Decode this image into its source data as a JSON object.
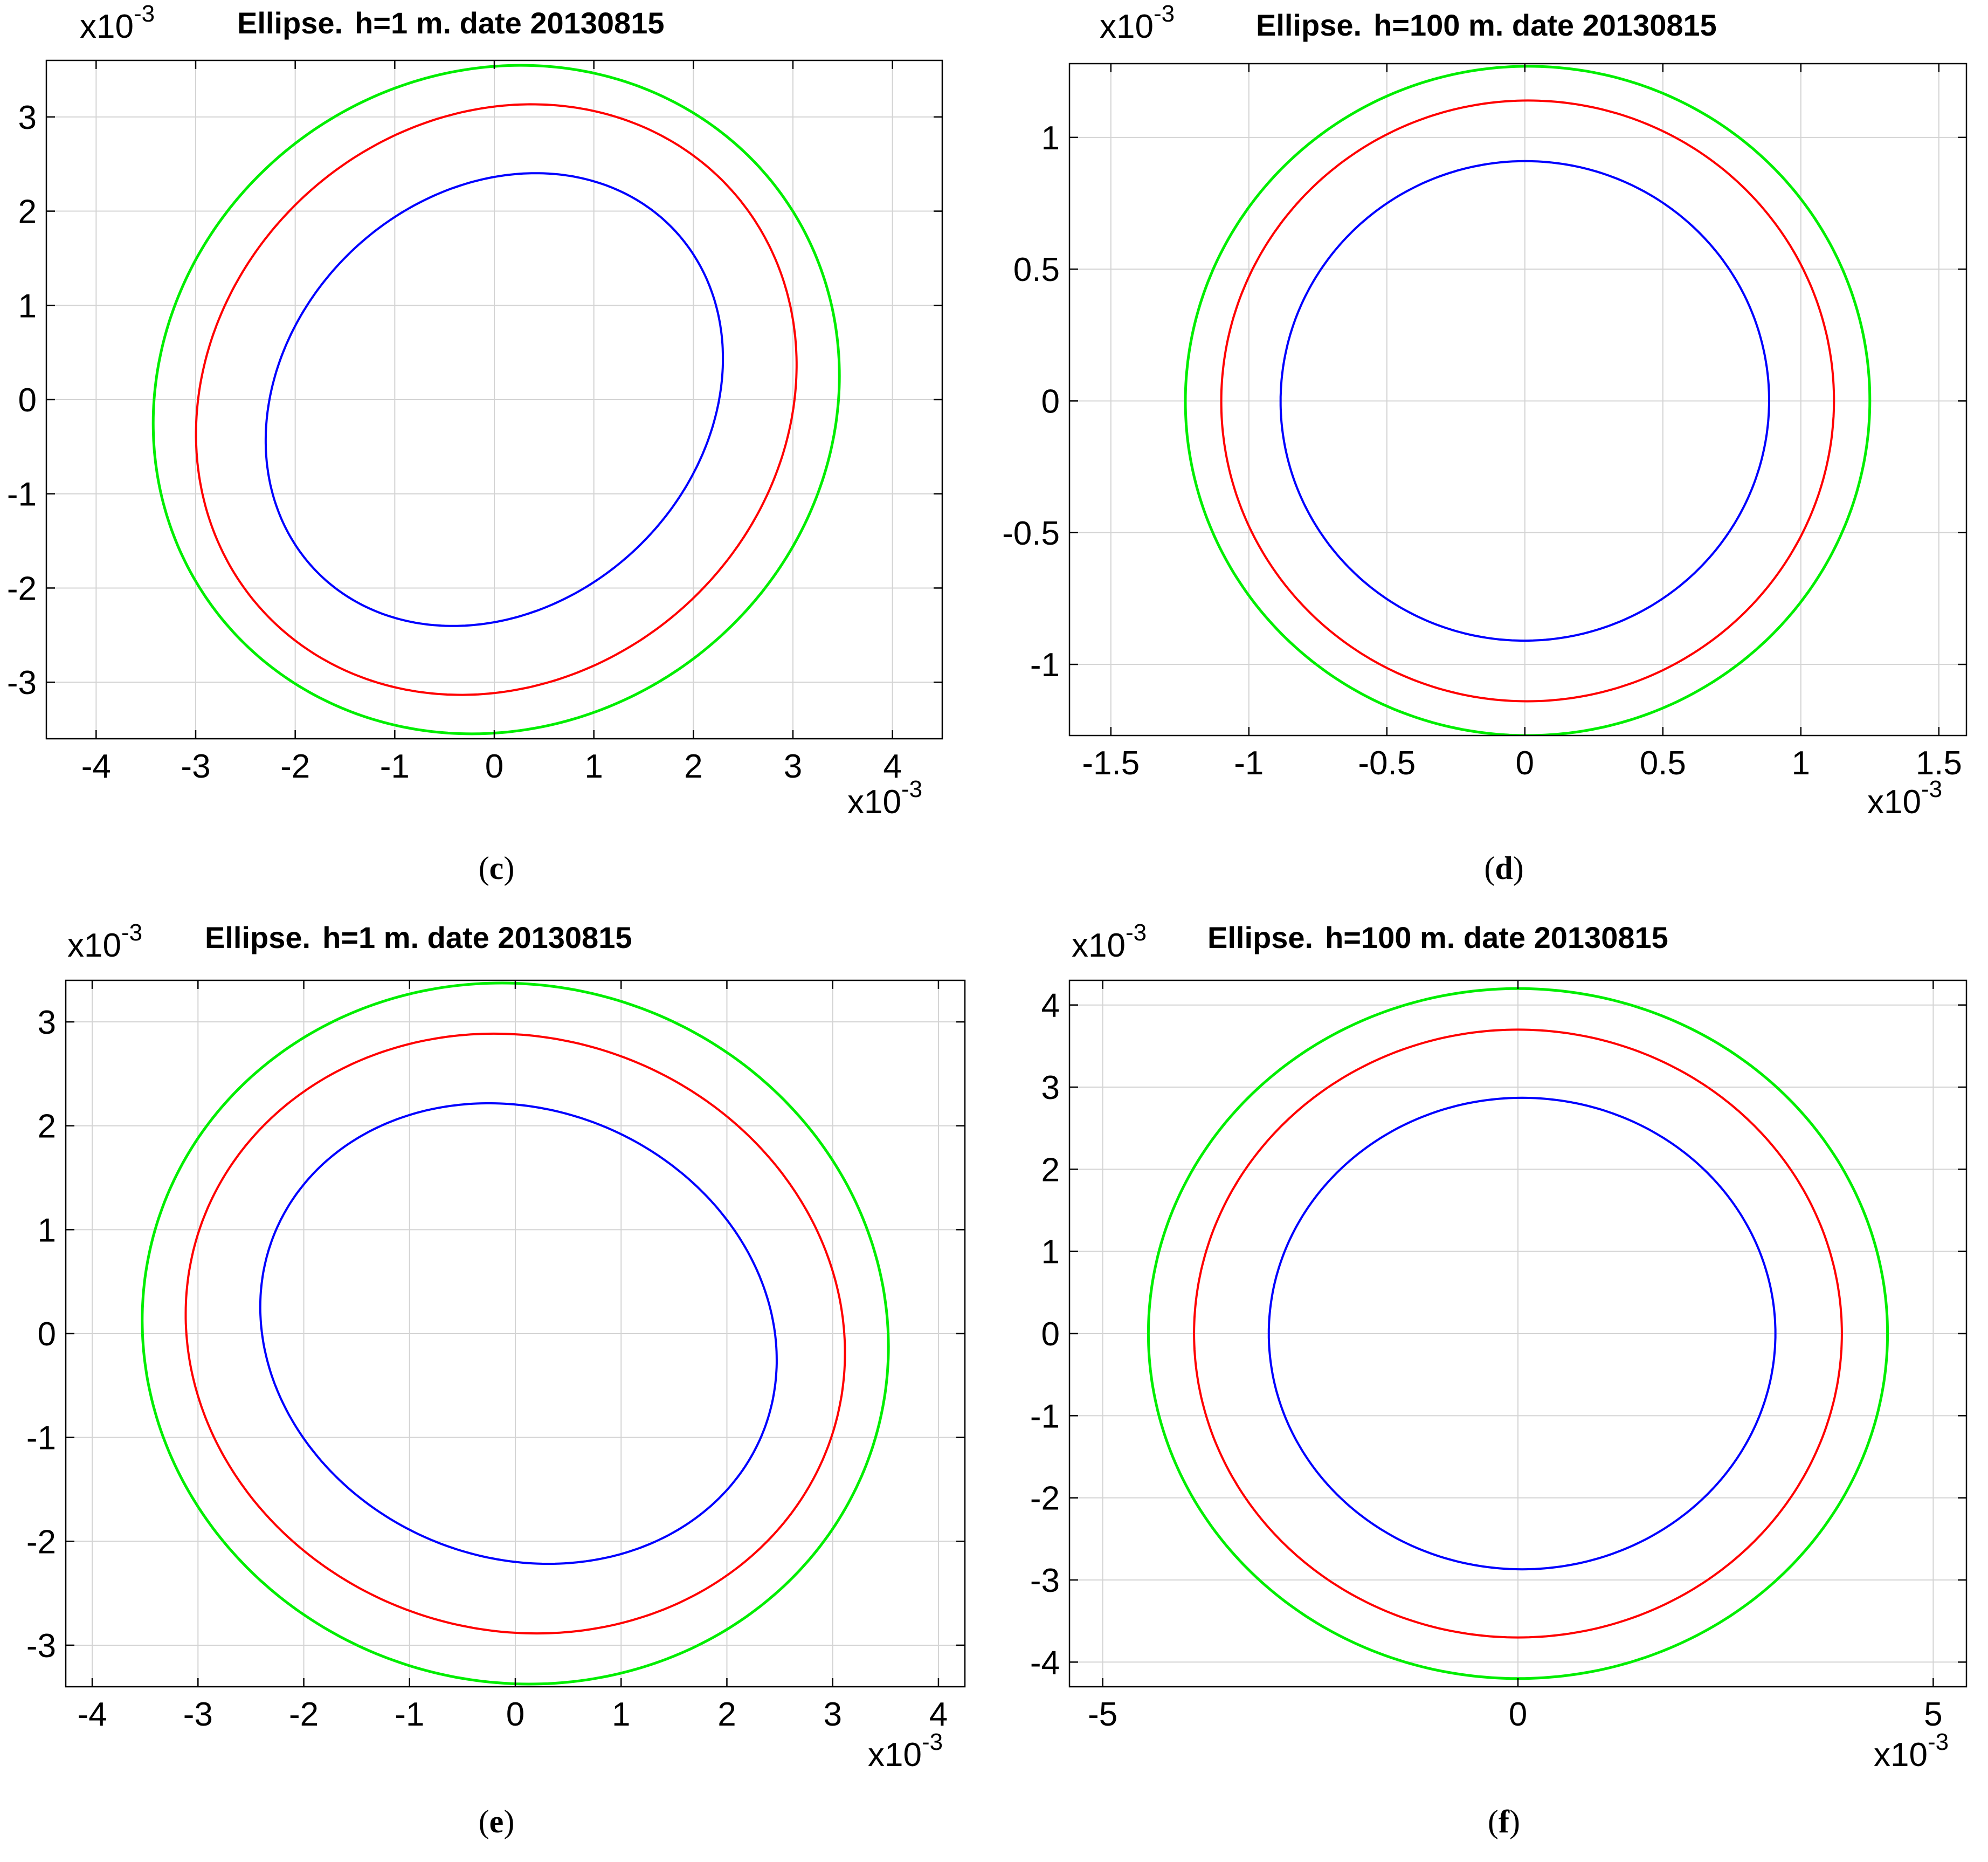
{
  "figure": {
    "colors": {
      "outer": "#00ee00",
      "middle": "#ff0000",
      "inner": "#0000ff",
      "grid": "#d4d4d4",
      "axis": "#000000"
    }
  },
  "chart_data": [
    {
      "id": "c",
      "type": "line",
      "panel_label": "c",
      "title_bold": "Ellipse.",
      "title_rest": "h=1 m. date 20130815",
      "exponent_base": "x10",
      "exponent_power": "-3",
      "xlim": [
        -4.5,
        4.5
      ],
      "ylim": [
        -3.6,
        3.6
      ],
      "xticks": [
        -4,
        -3,
        -2,
        -1,
        0,
        1,
        2,
        3,
        4
      ],
      "xtick_labels": [
        "-4",
        "-3",
        "-2",
        "-1",
        "0",
        "1",
        "2",
        "3",
        "4"
      ],
      "yticks": [
        3,
        2,
        1,
        0,
        -1,
        -2,
        -3
      ],
      "ytick_labels": [
        "3",
        "2",
        "1",
        "0",
        "-1",
        "-2",
        "-3"
      ],
      "grid": true,
      "series": [
        {
          "name": "outer",
          "color": "#00ee00",
          "center": [
            0.02,
            0.0
          ],
          "semi_major": 3.63,
          "semi_minor": 3.36,
          "rotation_deg": 56
        },
        {
          "name": "middle",
          "color": "#ff0000",
          "center": [
            0.02,
            0.0
          ],
          "semi_major": 3.26,
          "semi_minor": 2.88,
          "rotation_deg": 54
        },
        {
          "name": "inner",
          "color": "#0000ff",
          "center": [
            0.0,
            0.0
          ],
          "semi_major": 2.56,
          "semi_minor": 2.12,
          "rotation_deg": 52
        }
      ]
    },
    {
      "id": "d",
      "type": "line",
      "panel_label": "d",
      "title_bold": "Ellipse.",
      "title_rest": "h=100 m. date 20130815",
      "exponent_base": "x10",
      "exponent_power": "-3",
      "xlim": [
        -1.65,
        1.6
      ],
      "ylim": [
        -1.27,
        1.28
      ],
      "xticks": [
        -1.5,
        -1,
        -0.5,
        0,
        0.5,
        1,
        1.5
      ],
      "xtick_labels": [
        "-1.5",
        "-1",
        "-0.5",
        "0",
        "0.5",
        "1",
        "1.5"
      ],
      "yticks": [
        1,
        0.5,
        0,
        -0.5,
        -1
      ],
      "ytick_labels": [
        "1",
        "0.5",
        "0",
        "-0.5",
        "-1"
      ],
      "grid": true,
      "series": [
        {
          "name": "outer",
          "color": "#00ee00",
          "center": [
            0.01,
            0.0
          ],
          "semi_major": 1.27,
          "semi_minor": 1.24,
          "rotation_deg": 88
        },
        {
          "name": "middle",
          "color": "#ff0000",
          "center": [
            0.01,
            0.0
          ],
          "semi_major": 1.14,
          "semi_minor": 1.11,
          "rotation_deg": 88
        },
        {
          "name": "inner",
          "color": "#0000ff",
          "center": [
            0.0,
            0.0
          ],
          "semi_major": 0.91,
          "semi_minor": 0.885,
          "rotation_deg": 88
        }
      ]
    },
    {
      "id": "e",
      "type": "line",
      "panel_label": "e",
      "title_bold": "Ellipse.",
      "title_rest": "h=1 m. date 20130815",
      "exponent_base": "x10",
      "exponent_power": "-3",
      "xlim": [
        -4.25,
        4.25
      ],
      "ylim": [
        -3.4,
        3.4
      ],
      "xticks": [
        -4,
        -3,
        -2,
        -1,
        0,
        1,
        2,
        3,
        4
      ],
      "xtick_labels": [
        "-4",
        "-3",
        "-2",
        "-1",
        "0",
        "1",
        "2",
        "3",
        "4"
      ],
      "yticks": [
        3,
        2,
        1,
        0,
        -1,
        -2,
        -3
      ],
      "ytick_labels": [
        "3",
        "2",
        "1",
        "0",
        "-1",
        "-2",
        "-3"
      ],
      "grid": true,
      "series": [
        {
          "name": "outer",
          "color": "#00ee00",
          "center": [
            0.0,
            0.0
          ],
          "semi_major": 3.55,
          "semi_minor": 3.35,
          "rotation_deg": -20
        },
        {
          "name": "middle",
          "color": "#ff0000",
          "center": [
            0.0,
            0.0
          ],
          "semi_major": 3.15,
          "semi_minor": 2.85,
          "rotation_deg": -20
        },
        {
          "name": "inner",
          "color": "#0000ff",
          "center": [
            0.03,
            0.0
          ],
          "semi_major": 2.5,
          "semi_minor": 2.15,
          "rotation_deg": -25
        }
      ]
    },
    {
      "id": "f",
      "type": "line",
      "panel_label": "f",
      "title_bold": "Ellipse.",
      "title_rest": "h=100 m. date 20130815",
      "exponent_base": "x10",
      "exponent_power": "-3",
      "xlim": [
        -5.4,
        5.4
      ],
      "ylim": [
        -4.3,
        4.3
      ],
      "xticks": [
        -5,
        0,
        5
      ],
      "xtick_labels": [
        "-5",
        "0",
        "5"
      ],
      "yticks": [
        4,
        3,
        2,
        1,
        0,
        -1,
        -2,
        -3,
        -4
      ],
      "ytick_labels": [
        "4",
        "3",
        "2",
        "1",
        "0",
        "-1",
        "-2",
        "-3",
        "-4"
      ],
      "grid": true,
      "series": [
        {
          "name": "outer",
          "color": "#00ee00",
          "center": [
            0.0,
            0.0
          ],
          "semi_major": 4.45,
          "semi_minor": 4.2,
          "rotation_deg": 0
        },
        {
          "name": "middle",
          "color": "#ff0000",
          "center": [
            0.0,
            0.0
          ],
          "semi_major": 3.9,
          "semi_minor": 3.7,
          "rotation_deg": 0
        },
        {
          "name": "inner",
          "color": "#0000ff",
          "center": [
            0.05,
            0.0
          ],
          "semi_major": 3.05,
          "semi_minor": 2.87,
          "rotation_deg": 0
        }
      ]
    }
  ]
}
